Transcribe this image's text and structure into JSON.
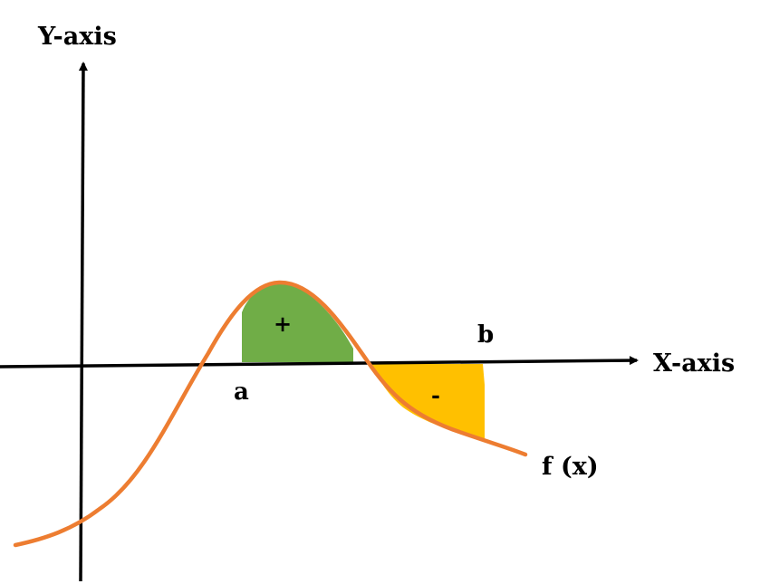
{
  "labels": {
    "y_axis": "Y-axis",
    "x_axis": "X-axis",
    "a": "a",
    "b": "b",
    "function": "f (x)",
    "positive_sign": "+",
    "negative_sign": "-"
  },
  "colors": {
    "curve": "#ED7D31",
    "positive_area": "#70AD47",
    "negative_area": "#FFC000",
    "axes": "#000000"
  }
}
